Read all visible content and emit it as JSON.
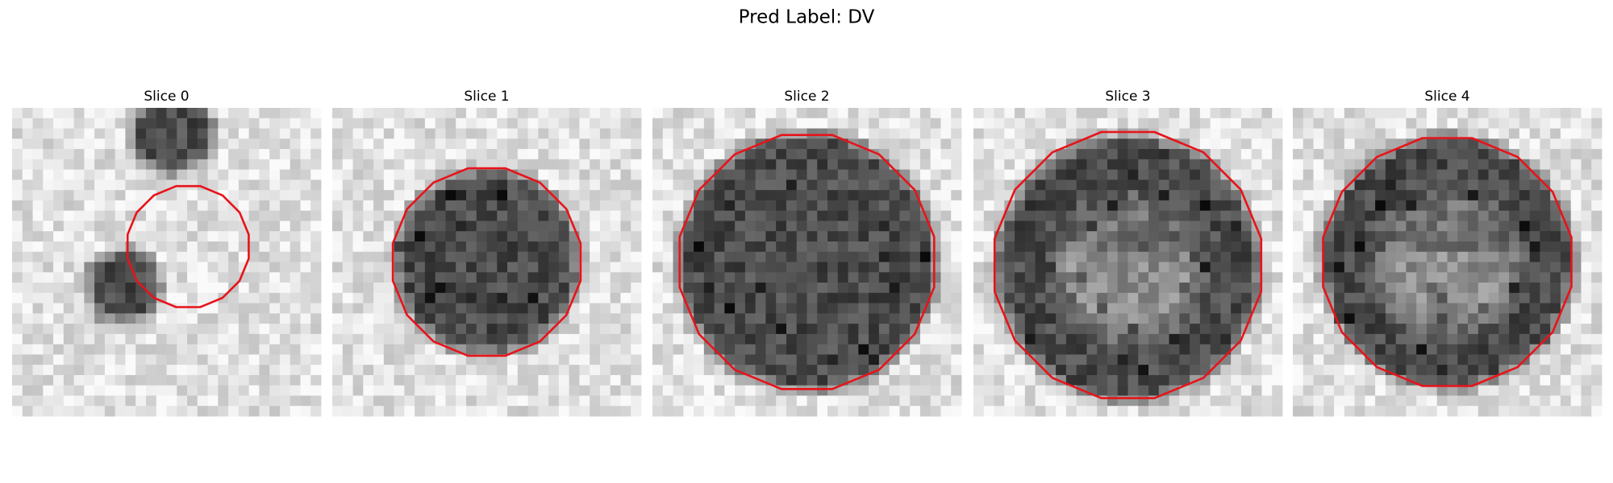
{
  "title": "Pred Label: DV",
  "panels": [
    {
      "title": "Slice 0"
    },
    {
      "title": "Slice 1"
    },
    {
      "title": "Slice 2"
    },
    {
      "title": "Slice 3"
    },
    {
      "title": "Slice 4"
    }
  ]
}
